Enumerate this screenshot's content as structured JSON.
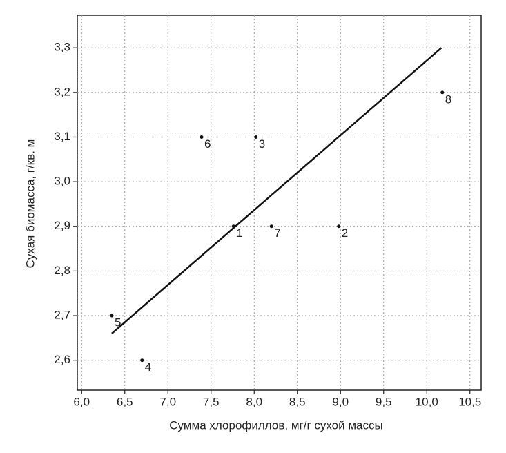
{
  "chart_data": {
    "type": "scatter",
    "x_label": "Сумма хлорофиллов, мг/г сухой массы",
    "y_label": "Сухая биомасса, г/кв. м",
    "x": [
      7.76,
      8.98,
      8.02,
      6.7,
      6.35,
      7.39,
      8.2,
      10.18
    ],
    "series": [
      {
        "values": [
          2.9,
          2.9,
          3.1,
          2.6,
          2.7,
          3.1,
          2.9,
          3.2
        ],
        "color": "#111111",
        "point_labels": [
          "1",
          "2",
          "3",
          "4",
          "5",
          "6",
          "7",
          "8"
        ]
      }
    ],
    "trendline": {
      "x": [
        6.35,
        10.17
      ],
      "values": [
        2.66,
        3.3
      ],
      "color": "#111111"
    },
    "xlim": [
      5.95,
      10.63
    ],
    "ylim": [
      2.533,
      3.373
    ],
    "xticks": [
      {
        "value": 6.0,
        "label": "6,0"
      },
      {
        "value": 6.5,
        "label": "6,5"
      },
      {
        "value": 7.0,
        "label": "7,0"
      },
      {
        "value": 7.5,
        "label": "7,5"
      },
      {
        "value": 8.0,
        "label": "8,0"
      },
      {
        "value": 8.5,
        "label": "8,5"
      },
      {
        "value": 9.0,
        "label": "9,0"
      },
      {
        "value": 9.5,
        "label": "9,5"
      },
      {
        "value": 10.0,
        "label": "10,0"
      },
      {
        "value": 10.5,
        "label": "10,5"
      }
    ],
    "yticks": [
      {
        "value": 2.6,
        "label": "2,6"
      },
      {
        "value": 2.7,
        "label": "2,7"
      },
      {
        "value": 2.8,
        "label": "2,8"
      },
      {
        "value": 2.9,
        "label": "2,9"
      },
      {
        "value": 3.0,
        "label": "3,0"
      },
      {
        "value": 3.1,
        "label": "3,1"
      },
      {
        "value": 3.2,
        "label": "3,2"
      },
      {
        "value": 3.3,
        "label": "3,3"
      }
    ],
    "grid": true
  }
}
